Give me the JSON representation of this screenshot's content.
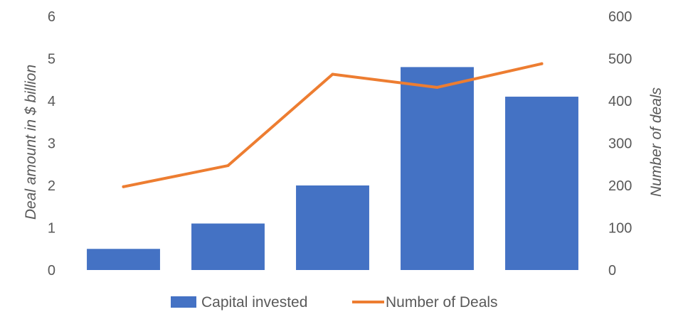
{
  "chart_data": {
    "type": "bar",
    "categories": [
      "",
      "",
      "",
      "",
      ""
    ],
    "series": [
      {
        "name": "Capital invested",
        "type": "bar",
        "axis": "left",
        "color": "#4472C4",
        "values": [
          0.5,
          1.1,
          2.0,
          4.8,
          4.1
        ]
      },
      {
        "name": "Number of Deals",
        "type": "line",
        "axis": "right",
        "color": "#ED7D31",
        "values": [
          197,
          247,
          463,
          432,
          488
        ]
      }
    ],
    "ylabel": "Deal amount in $ billion",
    "y2label": "Number of deals",
    "ylim": [
      0,
      6
    ],
    "y2lim": [
      0,
      600
    ],
    "yticks": [
      "0",
      "1",
      "2",
      "3",
      "4",
      "5",
      "6"
    ],
    "y2ticks": [
      "0",
      "100",
      "200",
      "300",
      "400",
      "500",
      "600"
    ],
    "grid": false,
    "legend": "bottom"
  }
}
